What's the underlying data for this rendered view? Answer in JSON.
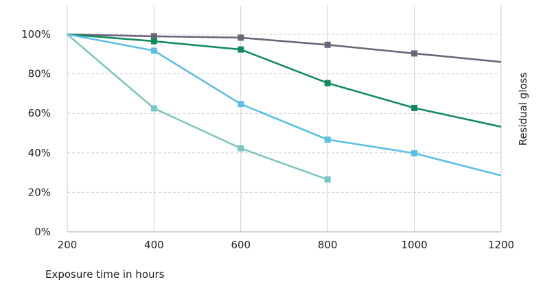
{
  "chart_data": {
    "type": "line",
    "title": "",
    "xlabel": "Exposure time in hours",
    "ylabel": "Residual gloss",
    "x_ticks": [
      "200",
      "400",
      "600",
      "800",
      "1000",
      "1200"
    ],
    "y_ticks": [
      "0%",
      "20%",
      "40%",
      "60%",
      "80%",
      "100%"
    ],
    "xlim": [
      200,
      1200
    ],
    "ylim": [
      0,
      100
    ],
    "grid": {
      "vertical": "solid",
      "horizontal": "dashed"
    },
    "legend": "none",
    "series": [
      {
        "color": "#6a6678",
        "points": [
          [
            200,
            100
          ],
          [
            400,
            99
          ],
          [
            600,
            98.3
          ],
          [
            800,
            94.7
          ],
          [
            1000,
            90.3
          ],
          [
            1200,
            86
          ]
        ],
        "marker_x": [
          400,
          600,
          800,
          1000
        ]
      },
      {
        "color": "#128a5e",
        "points": [
          [
            200,
            100
          ],
          [
            400,
            96.5
          ],
          [
            600,
            92.3
          ],
          [
            800,
            75.3
          ],
          [
            1000,
            62.7
          ],
          [
            1200,
            53.2
          ]
        ],
        "marker_x": [
          400,
          600,
          800,
          1000
        ]
      },
      {
        "color": "#5bbfe6",
        "points": [
          [
            200,
            100
          ],
          [
            400,
            91.7
          ],
          [
            600,
            64.7
          ],
          [
            800,
            46.7
          ],
          [
            1000,
            39.8
          ],
          [
            1200,
            28.5
          ]
        ],
        "marker_x": [
          400,
          600,
          800,
          1000
        ]
      },
      {
        "color": "#7cc6c1",
        "points": [
          [
            200,
            100
          ],
          [
            400,
            62.5
          ],
          [
            600,
            42.3
          ],
          [
            800,
            26.5
          ]
        ],
        "marker_x": [
          400,
          600,
          800
        ]
      }
    ]
  }
}
